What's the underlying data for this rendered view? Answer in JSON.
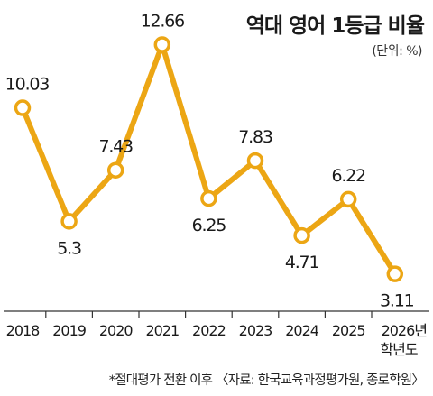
{
  "chart_data": {
    "type": "line",
    "title": "역대 영어 1등급 비율",
    "unit": "(단위: %)",
    "categories": [
      "2018",
      "2019",
      "2020",
      "2021",
      "2022",
      "2023",
      "2024",
      "2025",
      "2026년"
    ],
    "x_suffix": "학년도",
    "values": [
      10.03,
      5.3,
      7.43,
      12.66,
      6.25,
      7.83,
      4.71,
      6.22,
      3.11
    ],
    "value_labels": [
      "10.03",
      "5.3",
      "7.43",
      "12.66",
      "6.25",
      "7.83",
      "4.71",
      "6.22",
      "3.11"
    ],
    "label_positions": [
      "above",
      "below",
      "above",
      "above",
      "below",
      "above",
      "below",
      "above",
      "below"
    ],
    "footnote": "*절대평가 전환 이후 〈자료: 한국교육과정평가원, 종로학원〉",
    "ylim": [
      2,
      14
    ],
    "grid": false,
    "colors": {
      "line": "#ECA614",
      "marker_fill": "#ffffff",
      "axis": "#333333",
      "text": "#1a1a1a"
    }
  }
}
